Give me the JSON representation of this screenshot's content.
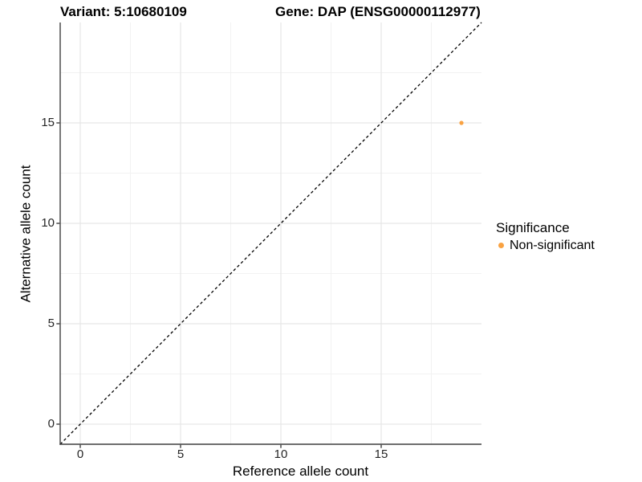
{
  "titles": {
    "variant": "Variant: 5:10680109",
    "gene": "Gene: DAP (ENSG00000112977)"
  },
  "axes": {
    "x": {
      "label": "Reference allele count",
      "major_ticks": [
        0,
        5,
        10,
        15
      ],
      "minor_ticks": [
        2.5,
        7.5,
        12.5,
        17.5
      ]
    },
    "y": {
      "label": "Alternative allele count",
      "major_ticks": [
        0,
        5,
        10,
        15
      ],
      "minor_ticks": [
        2.5,
        7.5,
        12.5,
        17.5
      ]
    }
  },
  "legend": {
    "title": "Significance",
    "items": [
      {
        "label": "Non-significant",
        "color": "#F9A242",
        "marker": "dot-icon"
      }
    ]
  },
  "chart_data": {
    "type": "scatter",
    "title": "Variant: 5:10680109 | Gene: DAP (ENSG00000112977)",
    "xlabel": "Reference allele count",
    "ylabel": "Alternative allele count",
    "xlim": [
      -1,
      20
    ],
    "ylim": [
      -1,
      20
    ],
    "grid": true,
    "legend_position": "right",
    "series": [
      {
        "name": "Non-significant",
        "color": "#F9A242",
        "points": [
          {
            "x": 19,
            "y": 15
          }
        ]
      }
    ],
    "reference_line": {
      "kind": "identity",
      "from": [
        -1,
        -1
      ],
      "to": [
        20,
        20
      ],
      "style": "dashed",
      "color": "#000000"
    }
  },
  "colors": {
    "point": "#F9A242",
    "grid_major": "#e7e7e7",
    "grid_minor": "#f2f2f2",
    "axis_line": "#3f3f3f",
    "tick_text": "#262626"
  }
}
